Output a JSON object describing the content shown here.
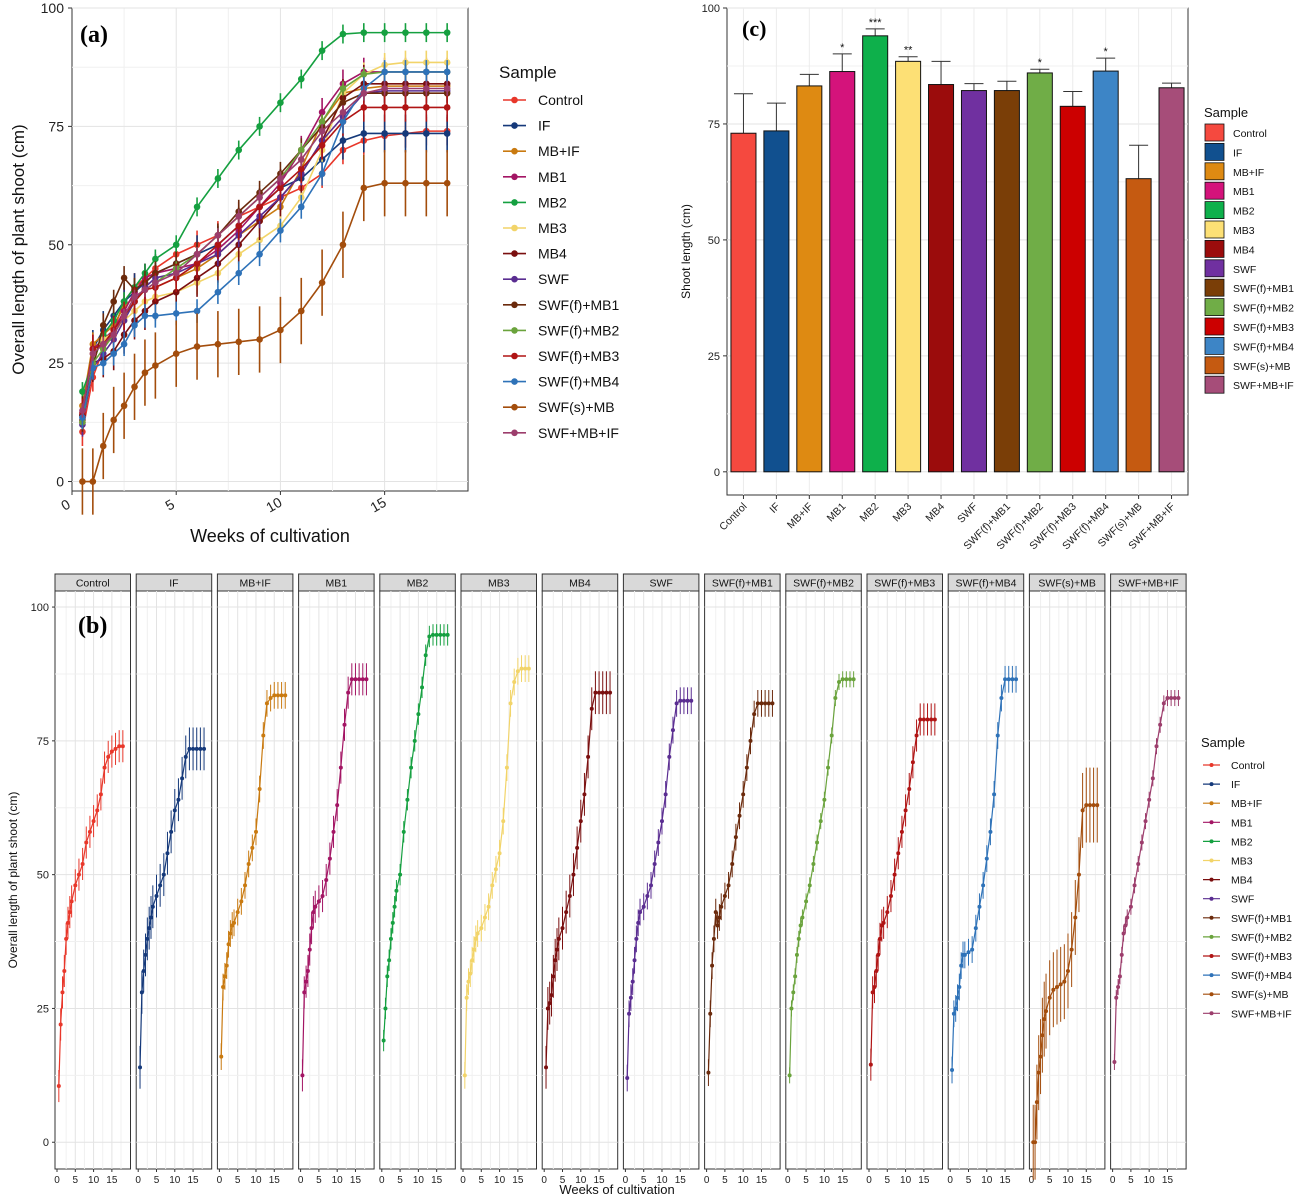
{
  "colors": {
    "Control": "#e8372a",
    "IF": "#15397a",
    "MB+IF": "#c97a10",
    "MB1": "#a31564",
    "MB2": "#15a040",
    "MB3": "#f2d469",
    "MB4": "#7a0f0f",
    "SWF": "#5a2d91",
    "SWF(f)+MB1": "#6b2a0c",
    "SWF(f)+MB2": "#6aa33c",
    "SWF(f)+MB3": "#b01414",
    "SWF(f)+MB4": "#2e72b8",
    "SWF(s)+MB": "#a34d0c",
    "SWF+MB+IF": "#9c3d6c"
  },
  "bar_colors": {
    "Control": "#f5493f",
    "IF": "#11508f",
    "MB+IF": "#de8a12",
    "MB1": "#d4137b",
    "MB2": "#0eb04b",
    "MB3": "#fde075",
    "MB4": "#9b0c0c",
    "SWF": "#7030a0",
    "SWF(f)+MB1": "#7a3e07",
    "SWF(f)+MB2": "#70ad47",
    "SWF(f)+MB3": "#cc0000",
    "SWF(f)+MB4": "#3d85c6",
    "SWF(s)+MB": "#c55a11",
    "SWF+MB+IF": "#a64d79"
  },
  "chart_data": [
    {
      "id": "a",
      "panel_label": "(a)",
      "type": "line",
      "xlabel": "Weeks of cultivation",
      "ylabel": "Overall length of plant shoot (cm)",
      "xlim": [
        0,
        19
      ],
      "ylim": [
        -2,
        100
      ],
      "xticks": [
        0,
        5,
        10,
        15
      ],
      "yticks": [
        0,
        25,
        50,
        75,
        100
      ],
      "grid": true,
      "legend_title": "Sample",
      "legend_position": "right",
      "x": [
        0.5,
        1,
        1.5,
        2,
        2.5,
        3,
        3.5,
        4,
        5,
        6,
        7,
        8,
        9,
        10,
        11,
        12,
        13,
        14,
        15,
        16,
        17,
        18
      ],
      "series": [
        {
          "name": "Control",
          "values": [
            10.5,
            22,
            28,
            32,
            38,
            41,
            43,
            45,
            48,
            50,
            52,
            56,
            58,
            60,
            62,
            65,
            70,
            72,
            73,
            73.5,
            74,
            74
          ],
          "err": 3
        },
        {
          "name": "IF",
          "values": [
            14,
            28,
            32,
            35,
            38,
            40,
            42,
            44,
            46,
            48,
            50,
            54,
            58,
            62,
            64,
            68,
            72,
            73.5,
            73.5,
            73.5,
            73.5,
            73.5
          ],
          "err": 4
        },
        {
          "name": "MB+IF",
          "values": [
            16,
            29,
            31,
            33,
            37,
            39,
            40.5,
            41,
            43,
            45,
            48,
            52,
            55,
            58,
            66,
            76,
            82,
            83,
            83.5,
            83.5,
            83.5,
            83.5
          ],
          "err": 2.5
        },
        {
          "name": "MB1",
          "values": [
            12.5,
            28,
            30,
            32,
            36,
            40,
            43,
            44,
            45,
            46,
            49,
            53,
            58,
            63,
            70,
            78,
            84,
            86.5,
            86.5,
            86.5,
            86.5,
            86.5
          ],
          "err": 3
        },
        {
          "name": "MB2",
          "values": [
            19,
            25,
            31,
            34,
            38,
            41,
            44,
            47,
            50,
            58,
            64,
            70,
            75,
            80,
            85,
            91,
            94.5,
            94.8,
            94.8,
            94.8,
            94.8,
            94.8
          ],
          "err": 2
        },
        {
          "name": "MB3",
          "values": [
            12.5,
            27,
            30,
            31.5,
            34,
            36,
            38,
            39,
            40,
            42,
            44,
            48,
            51,
            54,
            60,
            70,
            82,
            86,
            88,
            88.5,
            88.5,
            88.5
          ],
          "err": 2.5
        },
        {
          "name": "MB4",
          "values": [
            14,
            25,
            26,
            27.5,
            31,
            34,
            36,
            38,
            40,
            43,
            46,
            50,
            55,
            60,
            65,
            72,
            81,
            84,
            84,
            84,
            84,
            84
          ],
          "err": 4
        },
        {
          "name": "SWF",
          "values": [
            12,
            24,
            27,
            30,
            34,
            38,
            41,
            43,
            44,
            46,
            48,
            52,
            56,
            60,
            65,
            72,
            77,
            82,
            82.5,
            82.5,
            82.5,
            82.5
          ],
          "err": 2.5
        },
        {
          "name": "SWF(f)+MB1",
          "values": [
            13,
            24,
            33,
            38,
            43,
            40.5,
            42,
            44,
            46,
            48,
            52,
            57,
            61,
            65,
            70,
            75,
            80,
            82,
            82,
            82,
            82,
            82
          ],
          "err": 2.5
        },
        {
          "name": "SWF(f)+MB2",
          "values": [
            12.5,
            25,
            28,
            31,
            35,
            38,
            40.5,
            42,
            45,
            48,
            52,
            56,
            60,
            64,
            70,
            76,
            83,
            86,
            86.5,
            86.5,
            86.5,
            86.5
          ],
          "err": 1.5
        },
        {
          "name": "SWF(f)+MB3",
          "values": [
            14.5,
            28,
            29,
            32,
            35,
            38,
            40.5,
            41,
            43,
            46,
            50,
            54,
            58,
            62,
            66,
            71,
            76,
            79,
            79,
            79,
            79,
            79
          ],
          "err": 3
        },
        {
          "name": "SWF(f)+MB4",
          "values": [
            13.5,
            24,
            25,
            27,
            29,
            33,
            35,
            35,
            35.5,
            36,
            40,
            44,
            48,
            53,
            58,
            65,
            76,
            83,
            86.5,
            86.5,
            86.5,
            86.5
          ],
          "err": 2.5
        },
        {
          "name": "SWF(s)+MB",
          "values": [
            0,
            0,
            7.5,
            13,
            16,
            20,
            23,
            24.5,
            27,
            28.5,
            29,
            29.5,
            30,
            32,
            36,
            42,
            50,
            62,
            63,
            63,
            63,
            63
          ],
          "err": 7
        },
        {
          "name": "SWF+MB+IF",
          "values": [
            15,
            27,
            29,
            31,
            35,
            39,
            40.5,
            42,
            44,
            48,
            52,
            56,
            60,
            64,
            68,
            74,
            78,
            82,
            83,
            83,
            83,
            83
          ],
          "err": 1.5
        }
      ]
    },
    {
      "id": "b",
      "panel_label": "(b)",
      "type": "line",
      "facets": [
        "Control",
        "IF",
        "MB+IF",
        "MB1",
        "MB2",
        "MB3",
        "MB4",
        "SWF",
        "SWF(f)+MB1",
        "SWF(f)+MB2",
        "SWF(f)+MB3",
        "SWF(f)+MB4",
        "SWF(s)+MB",
        "SWF+MB+IF"
      ],
      "xlabel": "Weeks of cultivation",
      "ylabel": "Overall length of plant shoot (cm)",
      "xlim": [
        0,
        19
      ],
      "ylim": [
        -5,
        103
      ],
      "xticks": [
        0,
        5,
        10,
        15
      ],
      "yticks": [
        0,
        25,
        50,
        75,
        100
      ],
      "grid": true,
      "legend_title": "Sample",
      "legend_position": "right",
      "same_data_as": "a"
    },
    {
      "id": "c",
      "panel_label": "(c)",
      "type": "bar",
      "ylabel": "Shoot length (cm)",
      "ylim": [
        -5,
        100
      ],
      "yticks": [
        0,
        25,
        50,
        75,
        100
      ],
      "grid": true,
      "legend_title": "Sample",
      "legend_position": "right",
      "categories": [
        "Control",
        "IF",
        "MB+IF",
        "MB1",
        "MB2",
        "MB3",
        "MB4",
        "SWF",
        "SWF(f)+MB1",
        "SWF(f)+MB2",
        "SWF(f)+MB3",
        "SWF(f)+MB4",
        "SWF(s)+MB",
        "SWF+MB+IF"
      ],
      "values": [
        73,
        73.5,
        83.2,
        86.3,
        94,
        88.5,
        83.5,
        82.2,
        82.2,
        86,
        78.8,
        86.4,
        63.2,
        82.8
      ],
      "errors": [
        8.5,
        6,
        2.5,
        3.8,
        1.5,
        1,
        5,
        1.5,
        2,
        0.8,
        3.2,
        2.8,
        7.2,
        1
      ],
      "significance": [
        "",
        "",
        "",
        "*",
        "***",
        "**",
        "",
        "",
        "",
        "*",
        "",
        "*",
        "",
        ""
      ]
    }
  ]
}
